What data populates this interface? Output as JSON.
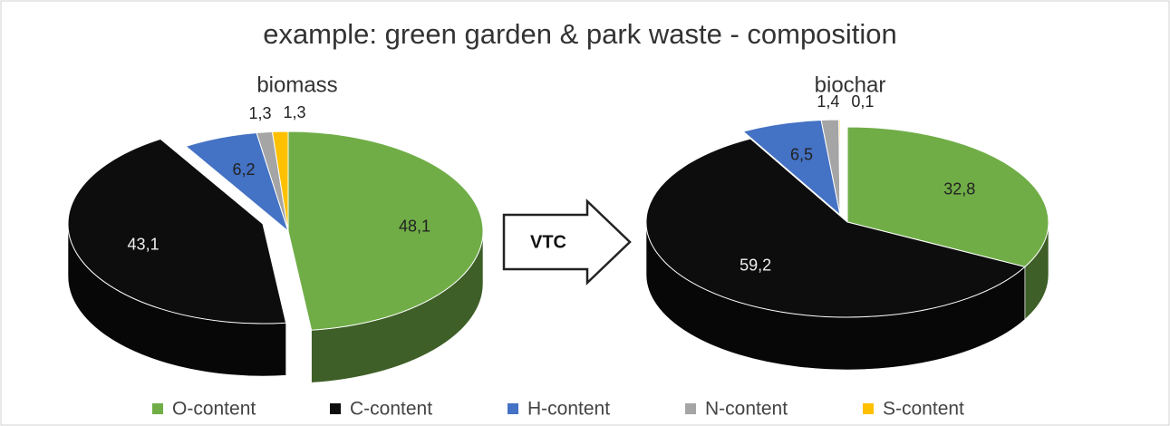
{
  "title": "example: green garden & park waste - composition",
  "arrow_label": "VTC",
  "chart_data": [
    {
      "type": "pie",
      "title": "biomass",
      "categories": [
        "O-content",
        "C-content",
        "H-content",
        "N-content",
        "S-content"
      ],
      "values": [
        48.1,
        43.1,
        6.2,
        1.3,
        1.3
      ],
      "value_labels": [
        "48,1",
        "43,1",
        "6,2",
        "1,3",
        "1,3"
      ],
      "colors": [
        "#70ad47",
        "#0d0d0d",
        "#4472c4",
        "#a5a5a5",
        "#ffc000"
      ]
    },
    {
      "type": "pie",
      "title": "biochar",
      "categories": [
        "O-content",
        "C-content",
        "H-content",
        "N-content",
        "S-content"
      ],
      "values": [
        32.8,
        59.2,
        6.5,
        1.4,
        0.1
      ],
      "value_labels": [
        "32,8",
        "59,2",
        "6,5",
        "1,4",
        "0,1"
      ],
      "colors": [
        "#70ad47",
        "#0d0d0d",
        "#4472c4",
        "#a5a5a5",
        "#ffc000"
      ]
    }
  ]
}
